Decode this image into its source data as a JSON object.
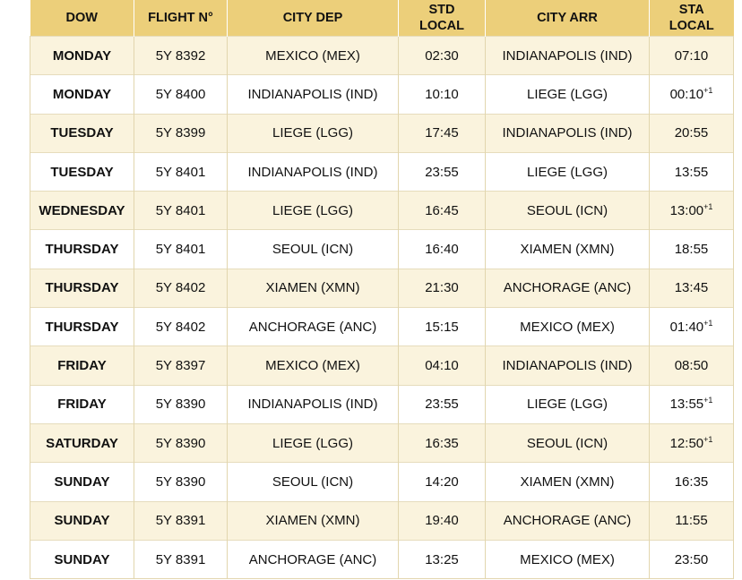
{
  "table": {
    "headers": [
      {
        "line1": "DOW",
        "line2": ""
      },
      {
        "line1": "FLIGHT N°",
        "line2": ""
      },
      {
        "line1": "CITY DEP",
        "line2": ""
      },
      {
        "line1": "STD",
        "line2": "LOCAL"
      },
      {
        "line1": "CITY ARR",
        "line2": ""
      },
      {
        "line1": "STA",
        "line2": "LOCAL"
      }
    ],
    "rows": [
      {
        "dow": "MONDAY",
        "flight": "5Y 8392",
        "dep": "MEXICO (MEX)",
        "std": "02:30",
        "arr": "INDIANAPOLIS (IND)",
        "sta": "07:10",
        "sta_suffix": ""
      },
      {
        "dow": "MONDAY",
        "flight": "5Y 8400",
        "dep": "INDIANAPOLIS (IND)",
        "std": "10:10",
        "arr": "LIEGE (LGG)",
        "sta": "00:10",
        "sta_suffix": "+1"
      },
      {
        "dow": "TUESDAY",
        "flight": "5Y 8399",
        "dep": "LIEGE (LGG)",
        "std": "17:45",
        "arr": "INDIANAPOLIS (IND)",
        "sta": "20:55",
        "sta_suffix": ""
      },
      {
        "dow": "TUESDAY",
        "flight": "5Y 8401",
        "dep": "INDIANAPOLIS (IND)",
        "std": "23:55",
        "arr": "LIEGE (LGG)",
        "sta": "13:55",
        "sta_suffix": ""
      },
      {
        "dow": "WEDNESDAY",
        "flight": "5Y 8401",
        "dep": "LIEGE (LGG)",
        "std": "16:45",
        "arr": "SEOUL (ICN)",
        "sta": "13:00",
        "sta_suffix": "+1"
      },
      {
        "dow": "THURSDAY",
        "flight": "5Y 8401",
        "dep": "SEOUL (ICN)",
        "std": "16:40",
        "arr": "XIAMEN (XMN)",
        "sta": "18:55",
        "sta_suffix": ""
      },
      {
        "dow": "THURSDAY",
        "flight": "5Y 8402",
        "dep": "XIAMEN (XMN)",
        "std": "21:30",
        "arr": "ANCHORAGE (ANC)",
        "sta": "13:45",
        "sta_suffix": ""
      },
      {
        "dow": "THURSDAY",
        "flight": "5Y 8402",
        "dep": "ANCHORAGE (ANC)",
        "std": "15:15",
        "arr": "MEXICO (MEX)",
        "sta": "01:40",
        "sta_suffix": "+1"
      },
      {
        "dow": "FRIDAY",
        "flight": "5Y 8397",
        "dep": "MEXICO (MEX)",
        "std": "04:10",
        "arr": "INDIANAPOLIS (IND)",
        "sta": "08:50",
        "sta_suffix": ""
      },
      {
        "dow": "FRIDAY",
        "flight": "5Y 8390",
        "dep": "INDIANAPOLIS (IND)",
        "std": "23:55",
        "arr": "LIEGE (LGG)",
        "sta": "13:55",
        "sta_suffix": "+1"
      },
      {
        "dow": "SATURDAY",
        "flight": "5Y 8390",
        "dep": "LIEGE (LGG)",
        "std": "16:35",
        "arr": "SEOUL (ICN)",
        "sta": "12:50",
        "sta_suffix": "+1"
      },
      {
        "dow": "SUNDAY",
        "flight": "5Y 8390",
        "dep": "SEOUL (ICN)",
        "std": "14:20",
        "arr": "XIAMEN (XMN)",
        "sta": "16:35",
        "sta_suffix": ""
      },
      {
        "dow": "SUNDAY",
        "flight": "5Y 8391",
        "dep": "XIAMEN (XMN)",
        "std": "19:40",
        "arr": "ANCHORAGE (ANC)",
        "sta": "11:55",
        "sta_suffix": ""
      },
      {
        "dow": "SUNDAY",
        "flight": "5Y 8391",
        "dep": "ANCHORAGE (ANC)",
        "std": "13:25",
        "arr": "MEXICO (MEX)",
        "sta": "23:50",
        "sta_suffix": ""
      }
    ]
  },
  "colors": {
    "header_bg": "#eccf7a",
    "row_alt_bg": "#faf3dd",
    "row_bg": "#ffffff",
    "border": "#e2d6ae"
  }
}
